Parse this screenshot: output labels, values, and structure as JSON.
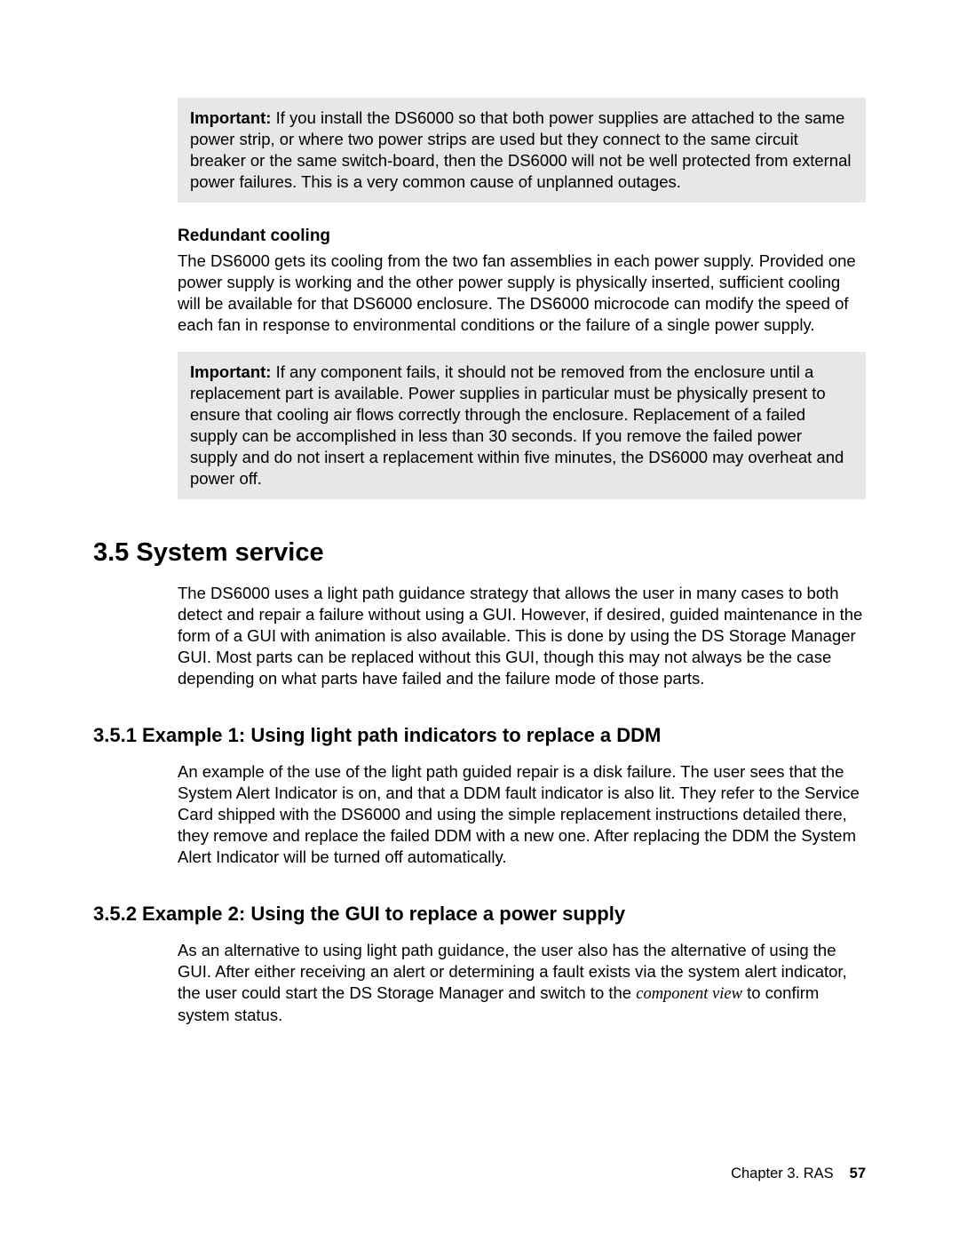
{
  "note1": {
    "label": "Important:",
    "text": " If you install the DS6000 so that both power supplies are attached to the same power strip, or where two power strips are used but they connect to the same circuit breaker or the same switch-board, then the DS6000 will not be well protected from external power failures. This is a very common cause of unplanned outages."
  },
  "redundant_cooling": {
    "heading": "Redundant cooling",
    "para": "The DS6000 gets its cooling from the two fan assemblies in each power supply. Provided one power supply is working and the other power supply is physically inserted, sufficient cooling will be available for that DS6000 enclosure. The DS6000 microcode can modify the speed of each fan in response to environmental conditions or the failure of a single power supply."
  },
  "note2": {
    "label": "Important:",
    "text": " If any component fails, it should not be removed from the enclosure until a replacement part is available. Power supplies in particular must be physically present to ensure that cooling air flows correctly through the enclosure. Replacement of a failed supply can be accomplished in less than 30 seconds. If you remove the failed power supply and do not insert a replacement within five minutes, the DS6000 may overheat and power off."
  },
  "section35": {
    "heading": "3.5  System service",
    "para": "The DS6000 uses a light path guidance strategy that allows the user in many cases to both detect and repair a failure without using a GUI. However, if desired, guided maintenance in the form of a GUI with animation is also available. This is done by using the DS Storage Manager GUI. Most parts can be replaced without this GUI, though this may not always be the case depending on what parts have failed and the failure mode of those parts."
  },
  "section351": {
    "heading": "3.5.1  Example 1: Using light path indicators to replace a DDM",
    "para": "An example of the use of the light path guided repair is a disk failure. The user sees that the System Alert Indicator is on, and that a DDM fault indicator is also lit. They refer to the Service Card shipped with the DS6000 and using the simple replacement instructions detailed there, they remove and replace the failed DDM with a new one. After replacing the DDM the System Alert Indicator will be turned off automatically."
  },
  "section352": {
    "heading": "3.5.2  Example 2: Using the GUI to replace a power supply",
    "para_before": "As an alternative to using light path guidance, the user also has the alternative of using the GUI. After either receiving an alert or determining a fault exists via the system alert indicator, the user could start the DS Storage Manager and switch to the ",
    "italic": "component view",
    "para_after": " to confirm system status."
  },
  "footer": {
    "chapter": "Chapter 3. RAS",
    "page": "57"
  },
  "styles": {
    "note_bg": "#e7e7e7",
    "page_bg": "#ffffff",
    "text_color": "#000000"
  }
}
